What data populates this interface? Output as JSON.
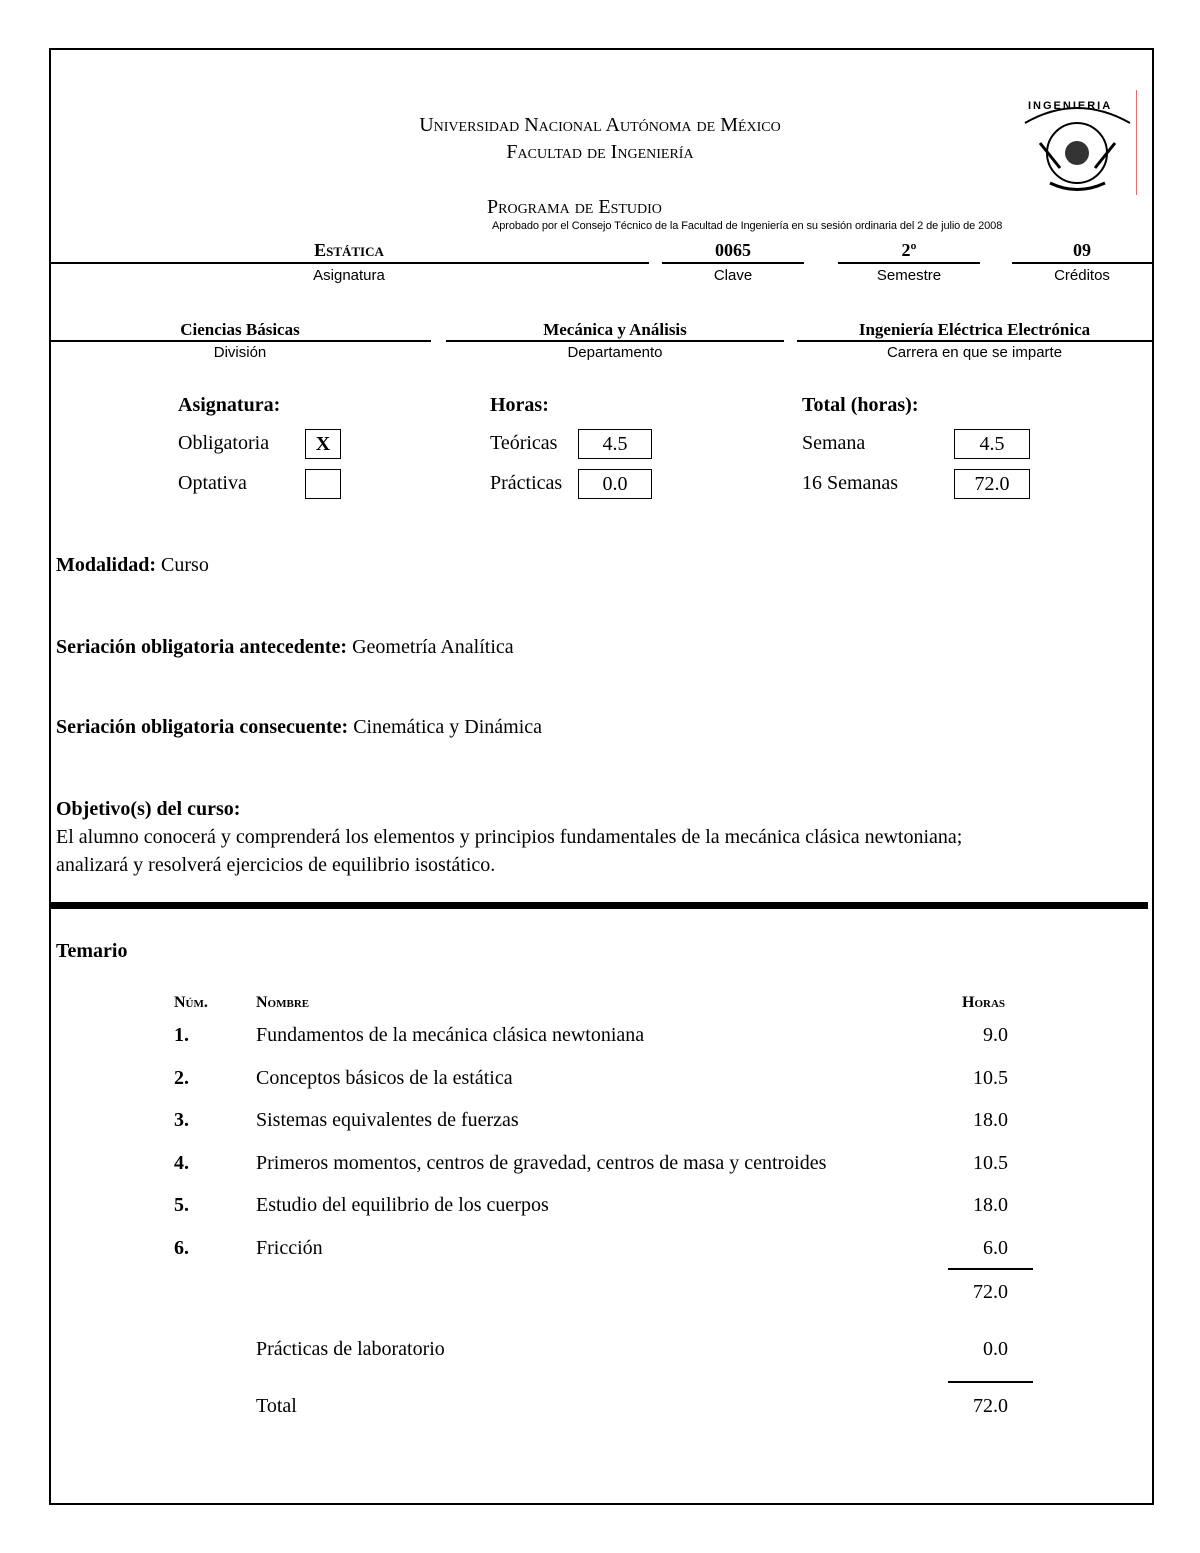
{
  "header": {
    "university": "Universidad Nacional Autónoma de México",
    "faculty": "Facultad de Ingeniería",
    "program": "Programa de Estudio",
    "approval": "Aprobado por el Consejo Técnico de la Facultad de Ingeniería en su sesión ordinaria del 2 de julio de 2008",
    "logo_text": "INGENIERIA"
  },
  "subject": {
    "name": "Estática",
    "name_label": "Asignatura",
    "code": "0065",
    "code_label": "Clave",
    "semester": "2º",
    "semester_label": "Semestre",
    "credits": "09",
    "credits_label": "Créditos"
  },
  "org": {
    "division": "Ciencias Básicas",
    "division_label": "División",
    "department": "Mecánica y Análisis",
    "department_label": "Departamento",
    "career": "Ingeniería Eléctrica Electrónica",
    "career_label": "Carrera en que se imparte"
  },
  "type": {
    "title": "Asignatura:",
    "mandatory": "Obligatoria",
    "mandatory_mark": "X",
    "optional": "Optativa",
    "optional_mark": ""
  },
  "hours": {
    "title": "Horas:",
    "theory_label": "Teóricas",
    "theory": "4.5",
    "practice_label": "Prácticas",
    "practice": "0.0"
  },
  "total": {
    "title": "Total (horas):",
    "week_label": "Semana",
    "week": "4.5",
    "semesters_label": "16 Semanas",
    "semesters": "72.0"
  },
  "modality": {
    "label": "Modalidad:",
    "value": "Curso"
  },
  "prereq": {
    "label": "Seriación obligatoria antecedente:",
    "value": "Geometría Analítica"
  },
  "next": {
    "label": "Seriación obligatoria consecuente:",
    "value": "Cinemática y Dinámica"
  },
  "objective": {
    "label": "Objetivo(s) del curso:",
    "line1": "El alumno conocerá  y comprenderá los elementos y principios fundamentales de la mecánica clásica newtoniana;",
    "line2": "analizará y resolverá ejercicios de equilibrio isostático."
  },
  "syllabus": {
    "title": "Temario",
    "col_num": "Núm.",
    "col_name": "Nombre",
    "col_hours": "Horas",
    "rows": [
      {
        "num": "1.",
        "name": "Fundamentos de la mecánica clásica newtoniana",
        "hours": "9.0"
      },
      {
        "num": "2.",
        "name": "Conceptos básicos de la estática",
        "hours": "10.5"
      },
      {
        "num": "3.",
        "name": "Sistemas equivalentes de fuerzas",
        "hours": "18.0"
      },
      {
        "num": "4.",
        "name": "Primeros momentos, centros de gravedad, centros  de masa y centroides",
        "hours": "10.5"
      },
      {
        "num": "5.",
        "name": "Estudio del equilibrio de los cuerpos",
        "hours": "18.0"
      },
      {
        "num": "6.",
        "name": "Fricción",
        "hours": "6.0"
      }
    ],
    "subtotal": "72.0",
    "lab_label": "Prácticas  de laboratorio",
    "lab": "0.0",
    "total_label": "Total",
    "total": "72.0"
  }
}
